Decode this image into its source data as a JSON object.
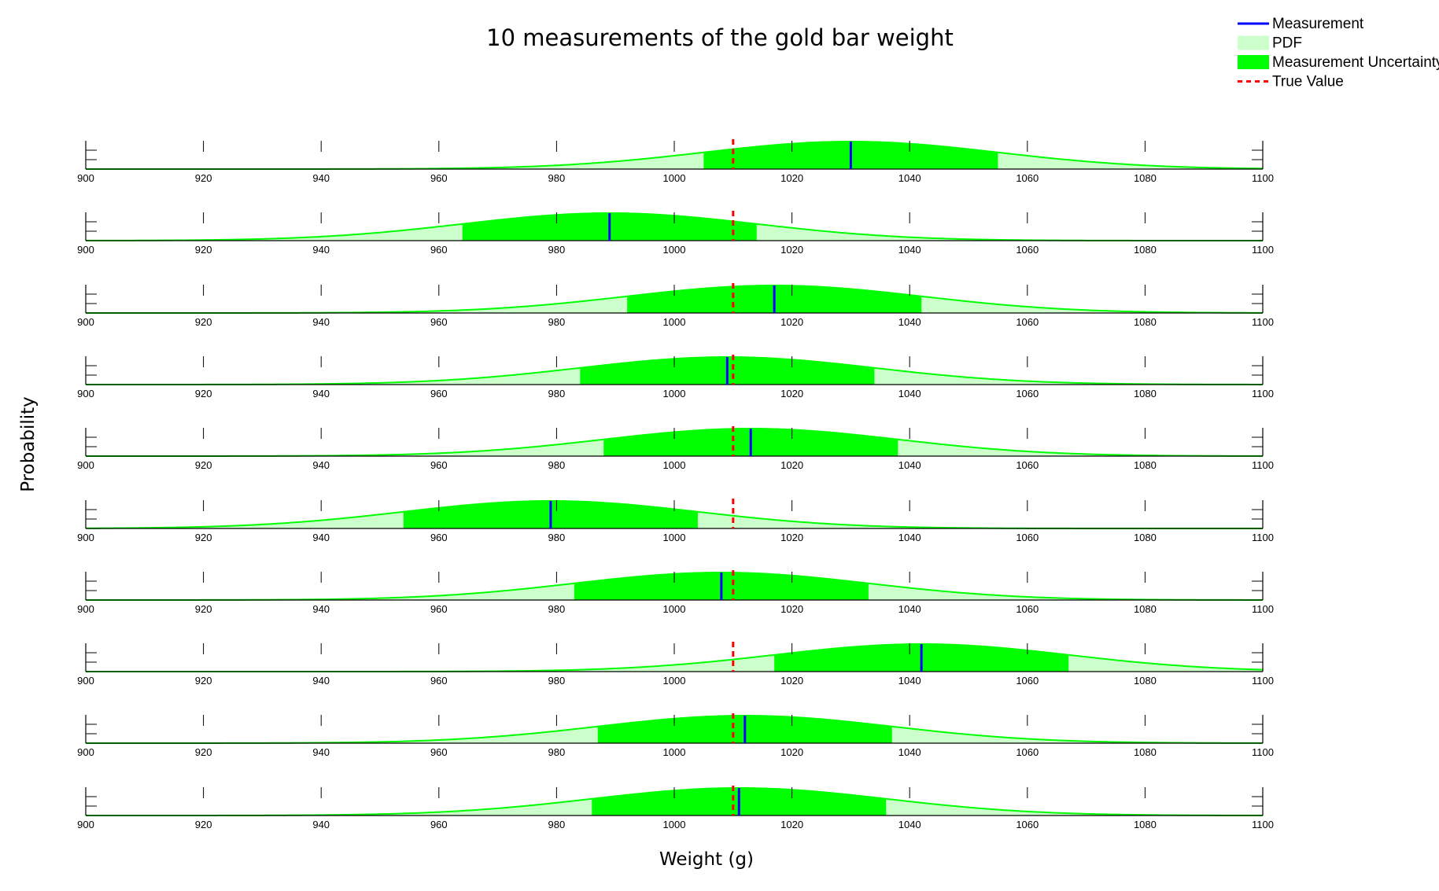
{
  "chart_data": {
    "type": "area",
    "title": "10 measurements of the gold bar weight",
    "xlabel": "Weight (g)",
    "ylabel": "Probability",
    "xlim": [
      900,
      1100
    ],
    "x_ticks": [
      900,
      920,
      940,
      960,
      980,
      1000,
      1020,
      1040,
      1060,
      1080,
      1100
    ],
    "true_value": 1010,
    "uncertainty_sigma": 25,
    "measurements": [
      1030,
      989,
      1017,
      1009,
      1013,
      979,
      1008,
      1042,
      1012,
      1011
    ],
    "legend": {
      "position": "top-right",
      "items": [
        {
          "label": "Measurement",
          "color": "#0000ff",
          "style": "line"
        },
        {
          "label": "PDF",
          "color": "#ccffcc",
          "style": "patch"
        },
        {
          "label": "Measurement Uncertainty",
          "color": "#00ff00",
          "style": "patch"
        },
        {
          "label": "True Value",
          "color": "#ff0000",
          "style": "dashed"
        }
      ]
    },
    "colors": {
      "measurement": "#0000ff",
      "pdf_fill": "#ccffcc",
      "pdf_line": "#00ff00",
      "uncertainty_fill": "#00ff00",
      "true_value": "#ff0000"
    }
  }
}
